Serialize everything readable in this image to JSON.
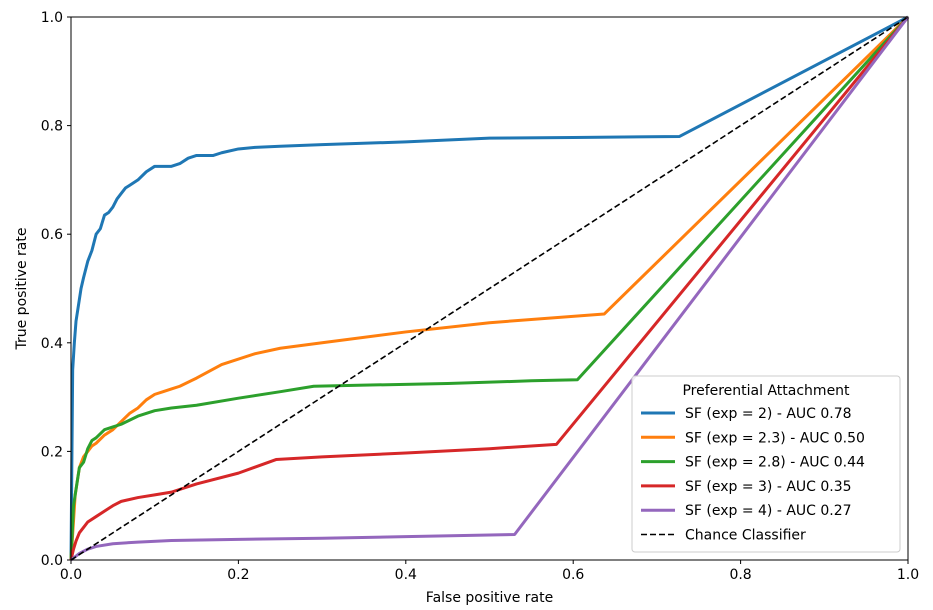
{
  "chart_data": {
    "type": "line",
    "xlabel": "False positive rate",
    "ylabel": "True positive rate",
    "xlim": [
      0.0,
      1.0
    ],
    "ylim": [
      0.0,
      1.0
    ],
    "xticks": [
      "0.0",
      "0.2",
      "0.4",
      "0.6",
      "0.8",
      "1.0"
    ],
    "yticks": [
      "0.0",
      "0.2",
      "0.4",
      "0.6",
      "0.8",
      "1.0"
    ],
    "grid": false,
    "legend": {
      "title": "Preferential Attachment",
      "placement": "bottom-right"
    },
    "series": [
      {
        "name": "SF (exp = 2) - AUC 0.78",
        "color": "#1f77b4",
        "x": [
          0.0,
          0.002,
          0.004,
          0.006,
          0.008,
          0.01,
          0.012,
          0.015,
          0.02,
          0.025,
          0.03,
          0.035,
          0.04,
          0.045,
          0.05,
          0.055,
          0.06,
          0.065,
          0.07,
          0.08,
          0.09,
          0.1,
          0.11,
          0.12,
          0.13,
          0.14,
          0.15,
          0.16,
          0.17,
          0.18,
          0.2,
          0.22,
          0.25,
          0.3,
          0.4,
          0.5,
          0.6,
          0.727,
          1.0
        ],
        "y": [
          0.0,
          0.35,
          0.4,
          0.44,
          0.46,
          0.48,
          0.5,
          0.52,
          0.55,
          0.57,
          0.6,
          0.61,
          0.635,
          0.64,
          0.65,
          0.665,
          0.675,
          0.685,
          0.69,
          0.7,
          0.715,
          0.725,
          0.725,
          0.725,
          0.73,
          0.74,
          0.745,
          0.745,
          0.745,
          0.75,
          0.757,
          0.76,
          0.762,
          0.765,
          0.77,
          0.777,
          0.778,
          0.78,
          1.0
        ]
      },
      {
        "name": "SF (exp = 2.3) - AUC 0.50",
        "color": "#ff7f0e",
        "x": [
          0.0,
          0.005,
          0.01,
          0.015,
          0.02,
          0.025,
          0.03,
          0.04,
          0.05,
          0.06,
          0.07,
          0.08,
          0.09,
          0.1,
          0.11,
          0.12,
          0.13,
          0.15,
          0.18,
          0.22,
          0.25,
          0.3,
          0.4,
          0.5,
          0.637,
          1.0
        ],
        "y": [
          0.0,
          0.12,
          0.17,
          0.19,
          0.2,
          0.21,
          0.215,
          0.23,
          0.24,
          0.255,
          0.27,
          0.28,
          0.295,
          0.305,
          0.31,
          0.315,
          0.32,
          0.335,
          0.36,
          0.38,
          0.39,
          0.4,
          0.42,
          0.437,
          0.453,
          1.0
        ]
      },
      {
        "name": "SF (exp = 2.8) - AUC 0.44",
        "color": "#2ca02c",
        "x": [
          0.0,
          0.003,
          0.006,
          0.01,
          0.015,
          0.02,
          0.025,
          0.03,
          0.04,
          0.05,
          0.06,
          0.08,
          0.1,
          0.12,
          0.15,
          0.2,
          0.25,
          0.29,
          0.35,
          0.45,
          0.55,
          0.605,
          1.0
        ],
        "y": [
          0.0,
          0.1,
          0.13,
          0.17,
          0.18,
          0.205,
          0.22,
          0.225,
          0.24,
          0.245,
          0.25,
          0.265,
          0.275,
          0.28,
          0.285,
          0.298,
          0.31,
          0.32,
          0.322,
          0.325,
          0.33,
          0.332,
          1.0
        ]
      },
      {
        "name": "SF (exp = 3) - AUC 0.35",
        "color": "#d62728",
        "x": [
          0.0,
          0.003,
          0.006,
          0.01,
          0.015,
          0.02,
          0.03,
          0.04,
          0.05,
          0.06,
          0.08,
          0.1,
          0.12,
          0.15,
          0.2,
          0.245,
          0.3,
          0.4,
          0.5,
          0.58,
          1.0
        ],
        "y": [
          0.0,
          0.02,
          0.035,
          0.05,
          0.06,
          0.07,
          0.08,
          0.09,
          0.1,
          0.108,
          0.115,
          0.12,
          0.125,
          0.14,
          0.16,
          0.185,
          0.19,
          0.197,
          0.205,
          0.213,
          1.0
        ]
      },
      {
        "name": "SF (exp = 4) - AUC 0.27",
        "color": "#9467bd",
        "x": [
          0.0,
          0.01,
          0.02,
          0.03,
          0.05,
          0.08,
          0.12,
          0.2,
          0.3,
          0.4,
          0.53,
          1.0
        ],
        "y": [
          0.0,
          0.012,
          0.02,
          0.025,
          0.03,
          0.033,
          0.036,
          0.038,
          0.04,
          0.043,
          0.047,
          1.0
        ]
      },
      {
        "name": "Chance Classifier",
        "color": "#000000",
        "dashed": true,
        "x": [
          0.0,
          1.0
        ],
        "y": [
          0.0,
          1.0
        ]
      }
    ]
  }
}
